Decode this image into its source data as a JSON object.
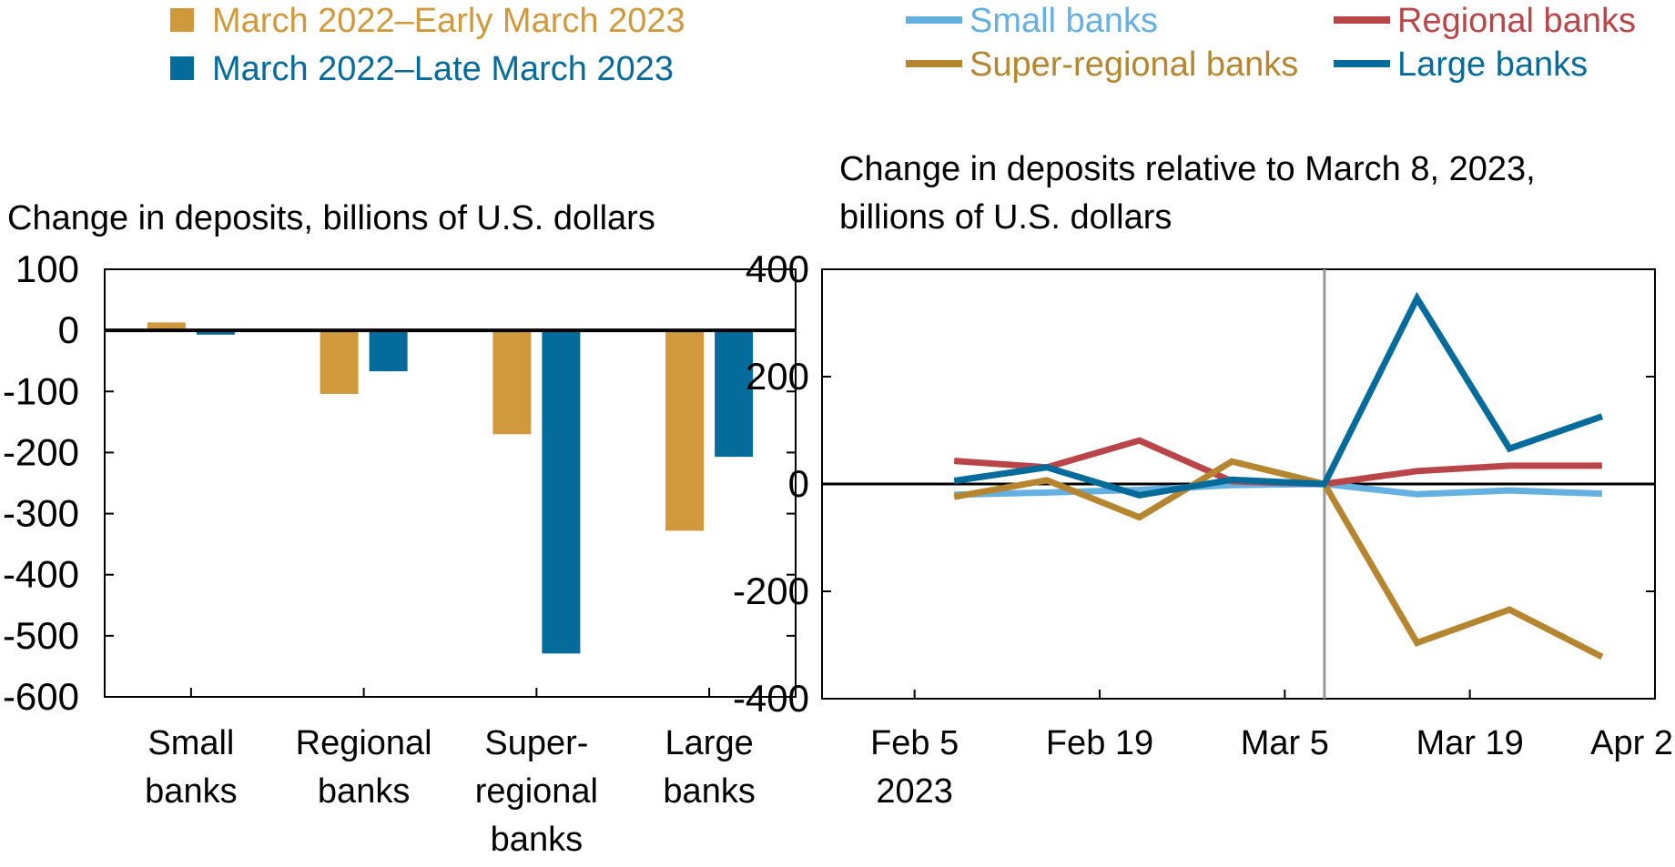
{
  "colors": {
    "early": "#D09A3C",
    "late": "#046B9A",
    "small": "#64B0E0",
    "regional": "#B94548",
    "super_regional": "#B5862F",
    "large": "#046B9A",
    "event_line": "#999999"
  },
  "chart_data": [
    {
      "type": "bar",
      "title": "Change in deposits, billions of U.S. dollars",
      "categories": [
        [
          "Small",
          "banks"
        ],
        [
          "Regional",
          "banks"
        ],
        [
          "Super-",
          "regional",
          "banks"
        ],
        [
          "Large",
          "banks"
        ]
      ],
      "series": [
        {
          "name": "March 2022–Early March 2023",
          "color_key": "early",
          "values": [
            13,
            -104,
            -170,
            -328
          ]
        },
        {
          "name": "March 2022–Late March 2023",
          "color_key": "late",
          "values": [
            -7,
            -67,
            -529,
            -207
          ]
        }
      ],
      "ylim": [
        -600,
        100
      ],
      "yticks": [
        100,
        0,
        -100,
        -200,
        -300,
        -400,
        -500,
        -600
      ],
      "legend": "top-left",
      "grid": false
    },
    {
      "type": "line",
      "title": [
        "Change in deposits relative to March 8, 2023,",
        "billions of U.S. dollars"
      ],
      "x": [
        "2023-02-08",
        "2023-02-15",
        "2023-02-22",
        "2023-03-01",
        "2023-03-08",
        "2023-03-15",
        "2023-03-22",
        "2023-03-29"
      ],
      "series": [
        {
          "name": "Small banks",
          "color_key": "small",
          "values": [
            -20,
            -16,
            -11,
            -2,
            0,
            -19,
            -12,
            -18
          ]
        },
        {
          "name": "Regional banks",
          "color_key": "regional",
          "values": [
            43,
            31,
            81,
            5,
            0,
            24,
            34,
            34
          ]
        },
        {
          "name": "Super-regional banks",
          "color_key": "super_regional",
          "values": [
            -24,
            7,
            -62,
            42,
            0,
            -296,
            -234,
            -322
          ]
        },
        {
          "name": "Large banks",
          "color_key": "large",
          "values": [
            6,
            31,
            -21,
            8,
            0,
            346,
            66,
            126
          ]
        }
      ],
      "xlim": [
        "2023-01-29",
        "2023-04-02"
      ],
      "xticks": [
        {
          "date": "2023-02-05",
          "label": [
            "Feb 5",
            "2023"
          ]
        },
        {
          "date": "2023-02-19",
          "label": [
            "Feb 19"
          ]
        },
        {
          "date": "2023-03-05",
          "label": [
            "Mar 5"
          ]
        },
        {
          "date": "2023-03-19",
          "label": [
            "Mar 19"
          ]
        },
        {
          "date": "2023-04-02",
          "label": [
            "Apr 2"
          ]
        }
      ],
      "ylim": [
        -400,
        400
      ],
      "yticks": [
        400,
        200,
        0,
        -200,
        -400
      ],
      "event_line_date": "2023-03-08",
      "legend": "top",
      "grid": false
    }
  ]
}
